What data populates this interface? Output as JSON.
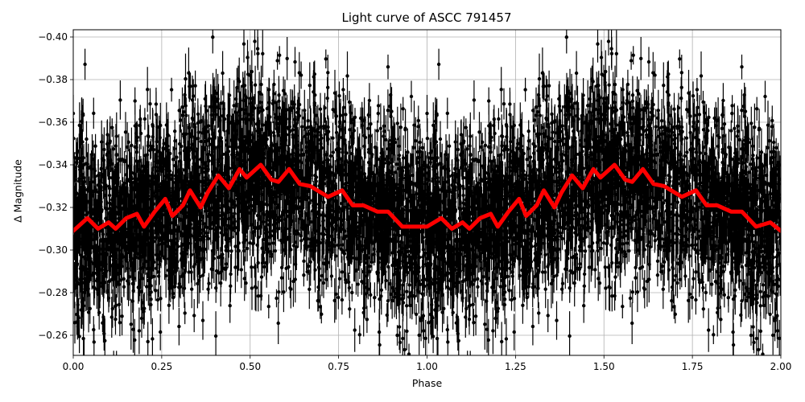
{
  "chart_data": {
    "type": "scatter",
    "title": "Light curve of ASCC 791457",
    "xlabel": "Phase",
    "ylabel": "Δ Magnitude",
    "xlim": [
      0.0,
      2.0
    ],
    "ylim": [
      -0.2505,
      -0.4035
    ],
    "y_inverted": true,
    "grid": true,
    "x_ticks": [
      "0.00",
      "0.25",
      "0.50",
      "0.75",
      "1.00",
      "1.25",
      "1.50",
      "1.75",
      "2.00"
    ],
    "x_tick_values": [
      0.0,
      0.25,
      0.5,
      0.75,
      1.0,
      1.25,
      1.5,
      1.75,
      2.0
    ],
    "y_ticks": [
      "−0.40",
      "−0.38",
      "−0.36",
      "−0.34",
      "−0.32",
      "−0.30",
      "−0.28",
      "−0.26"
    ],
    "y_tick_values": [
      -0.4,
      -0.38,
      -0.36,
      -0.34,
      -0.32,
      -0.3,
      -0.28,
      -0.26
    ],
    "series": [
      {
        "name": "observations",
        "style": "black points with error bars",
        "color": "#000000",
        "description": "dense scatter of phased photometry, mean near -0.32, spread roughly -0.25 to -0.40, repeated over two phases"
      },
      {
        "name": "binned model",
        "style": "thick line",
        "color": "#ff0000",
        "phase": [
          0.0,
          0.04,
          0.07,
          0.1,
          0.12,
          0.15,
          0.18,
          0.2,
          0.23,
          0.26,
          0.28,
          0.31,
          0.33,
          0.36,
          0.38,
          0.41,
          0.44,
          0.47,
          0.49,
          0.53,
          0.56,
          0.58,
          0.61,
          0.64,
          0.67,
          0.72,
          0.76,
          0.79,
          0.82,
          0.86,
          0.89,
          0.93,
          0.97,
          1.0,
          1.04,
          1.07,
          1.1,
          1.12,
          1.15,
          1.18,
          1.2,
          1.23,
          1.26,
          1.28,
          1.31,
          1.33,
          1.36,
          1.38,
          1.41,
          1.44,
          1.47,
          1.49,
          1.53,
          1.56,
          1.58,
          1.61,
          1.64,
          1.67,
          1.72,
          1.76,
          1.79,
          1.82,
          1.86,
          1.89,
          1.93,
          1.97,
          2.0
        ],
        "values": [
          -0.309,
          -0.315,
          -0.31,
          -0.313,
          -0.31,
          -0.315,
          -0.317,
          -0.311,
          -0.318,
          -0.324,
          -0.316,
          -0.321,
          -0.328,
          -0.32,
          -0.327,
          -0.335,
          -0.329,
          -0.338,
          -0.334,
          -0.34,
          -0.333,
          -0.332,
          -0.338,
          -0.331,
          -0.33,
          -0.325,
          -0.328,
          -0.321,
          -0.321,
          -0.318,
          -0.318,
          -0.311,
          -0.311,
          -0.311,
          -0.315,
          -0.31,
          -0.313,
          -0.31,
          -0.315,
          -0.317,
          -0.311,
          -0.318,
          -0.324,
          -0.316,
          -0.321,
          -0.328,
          -0.32,
          -0.327,
          -0.335,
          -0.329,
          -0.338,
          -0.334,
          -0.34,
          -0.333,
          -0.332,
          -0.338,
          -0.331,
          -0.33,
          -0.325,
          -0.328,
          -0.321,
          -0.321,
          -0.318,
          -0.318,
          -0.311,
          -0.313,
          -0.309
        ]
      }
    ]
  }
}
